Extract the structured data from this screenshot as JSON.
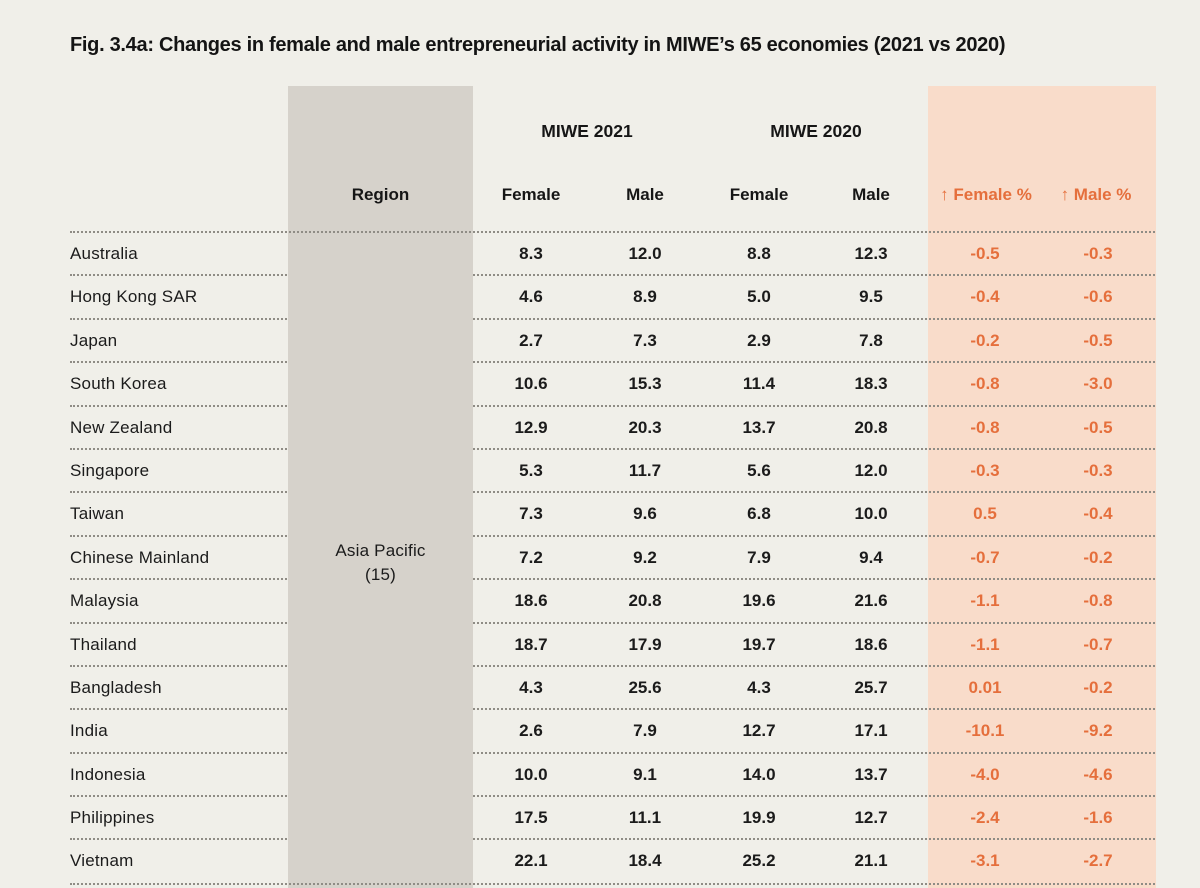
{
  "title": "Fig. 3.4a: Changes in female and male entrepreneurial activity in MIWE’s 65 economies (2021 vs 2020)",
  "colors": {
    "page_background": "#f0efe9",
    "region_band": "#d6d2cb",
    "change_band": "#f9dcca",
    "accent_orange": "#e56f3c",
    "text": "#1b1b1b",
    "dotted_rule": "#8f8c85"
  },
  "table": {
    "group_headers": {
      "miwe_2021": "MIWE 2021",
      "miwe_2020": "MIWE 2020"
    },
    "columns": {
      "region": "Region",
      "female_2021": "Female",
      "male_2021": "Male",
      "female_2020": "Female",
      "male_2020": "Male",
      "female_change": "↑ Female %",
      "male_change": "↑ Male %"
    },
    "region": {
      "name": "Asia Pacific",
      "count": "(15)"
    },
    "rows": [
      {
        "country": "Australia",
        "f21": "8.3",
        "m21": "12.0",
        "f20": "8.8",
        "m20": "12.3",
        "fchg": "-0.5",
        "mchg": "-0.3"
      },
      {
        "country": "Hong Kong SAR",
        "f21": "4.6",
        "m21": "8.9",
        "f20": "5.0",
        "m20": "9.5",
        "fchg": "-0.4",
        "mchg": "-0.6"
      },
      {
        "country": "Japan",
        "f21": "2.7",
        "m21": "7.3",
        "f20": "2.9",
        "m20": "7.8",
        "fchg": "-0.2",
        "mchg": "-0.5"
      },
      {
        "country": "South Korea",
        "f21": "10.6",
        "m21": "15.3",
        "f20": "11.4",
        "m20": "18.3",
        "fchg": "-0.8",
        "mchg": "-3.0"
      },
      {
        "country": "New Zealand",
        "f21": "12.9",
        "m21": "20.3",
        "f20": "13.7",
        "m20": "20.8",
        "fchg": "-0.8",
        "mchg": "-0.5"
      },
      {
        "country": "Singapore",
        "f21": "5.3",
        "m21": "11.7",
        "f20": "5.6",
        "m20": "12.0",
        "fchg": "-0.3",
        "mchg": "-0.3"
      },
      {
        "country": "Taiwan",
        "f21": "7.3",
        "m21": "9.6",
        "f20": "6.8",
        "m20": "10.0",
        "fchg": "0.5",
        "mchg": "-0.4"
      },
      {
        "country": "Chinese Mainland",
        "f21": "7.2",
        "m21": "9.2",
        "f20": "7.9",
        "m20": "9.4",
        "fchg": "-0.7",
        "mchg": "-0.2"
      },
      {
        "country": "Malaysia",
        "f21": "18.6",
        "m21": "20.8",
        "f20": "19.6",
        "m20": "21.6",
        "fchg": "-1.1",
        "mchg": "-0.8"
      },
      {
        "country": "Thailand",
        "f21": "18.7",
        "m21": "17.9",
        "f20": "19.7",
        "m20": "18.6",
        "fchg": "-1.1",
        "mchg": "-0.7"
      },
      {
        "country": "Bangladesh",
        "f21": "4.3",
        "m21": "25.6",
        "f20": "4.3",
        "m20": "25.7",
        "fchg": "0.01",
        "mchg": "-0.2"
      },
      {
        "country": "India",
        "f21": "2.6",
        "m21": "7.9",
        "f20": "12.7",
        "m20": "17.1",
        "fchg": "-10.1",
        "mchg": "-9.2"
      },
      {
        "country": "Indonesia",
        "f21": "10.0",
        "m21": "9.1",
        "f20": "14.0",
        "m20": "13.7",
        "fchg": "-4.0",
        "mchg": "-4.6"
      },
      {
        "country": "Philippines",
        "f21": "17.5",
        "m21": "11.1",
        "f20": "19.9",
        "m20": "12.7",
        "fchg": "-2.4",
        "mchg": "-1.6"
      },
      {
        "country": "Vietnam",
        "f21": "22.1",
        "m21": "18.4",
        "f20": "25.2",
        "m20": "21.1",
        "fchg": "-3.1",
        "mchg": "-2.7"
      }
    ]
  }
}
